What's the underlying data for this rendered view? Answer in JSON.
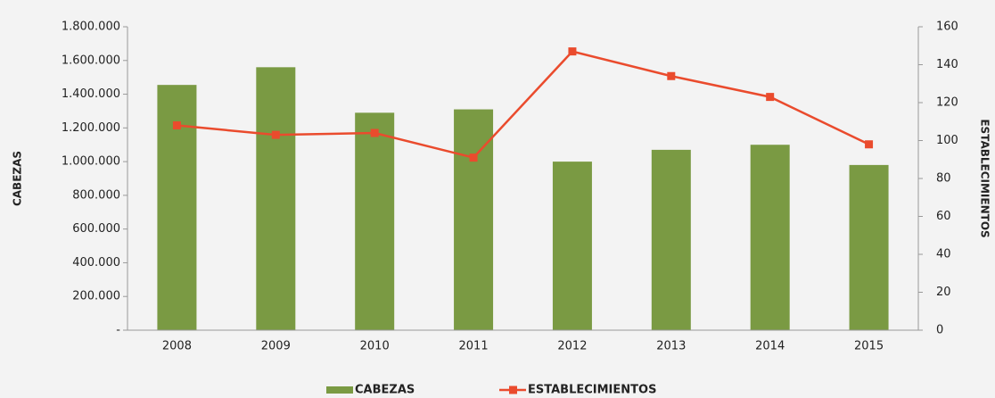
{
  "chart_data": {
    "type": "bar",
    "categories": [
      "2008",
      "2009",
      "2010",
      "2011",
      "2012",
      "2013",
      "2014",
      "2015"
    ],
    "ylabel": "CABEZAS",
    "y2label": "ESTABLECIMIENTOS",
    "series": [
      {
        "name": "CABEZAS",
        "type": "bar",
        "color": "#7a9a43",
        "values": [
          1455000,
          1560000,
          1290000,
          1310000,
          1000000,
          1070000,
          1100000,
          980000
        ]
      },
      {
        "name": "ESTABLECIMIENTOS",
        "type": "line",
        "axis": "y2",
        "color": "#ea4b2d",
        "values": [
          108,
          103,
          104,
          91,
          147,
          134,
          123,
          98
        ]
      }
    ],
    "ylim": [
      0,
      1800000
    ],
    "yticks": [
      {
        "value": 0,
        "label": "-"
      },
      {
        "value": 200000,
        "label": "200.000"
      },
      {
        "value": 400000,
        "label": "400.000"
      },
      {
        "value": 600000,
        "label": "600.000"
      },
      {
        "value": 800000,
        "label": "800.000"
      },
      {
        "value": 1000000,
        "label": "1.000.000"
      },
      {
        "value": 1200000,
        "label": "1.200.000"
      },
      {
        "value": 1400000,
        "label": "1.400.000"
      },
      {
        "value": 1600000,
        "label": "1.600.000"
      },
      {
        "value": 1800000,
        "label": "1.800.000"
      }
    ],
    "y2lim": [
      0,
      160
    ],
    "y2ticks": [
      0,
      20,
      40,
      60,
      80,
      100,
      120,
      140,
      160
    ],
    "grid": false,
    "legend": "bottom"
  }
}
